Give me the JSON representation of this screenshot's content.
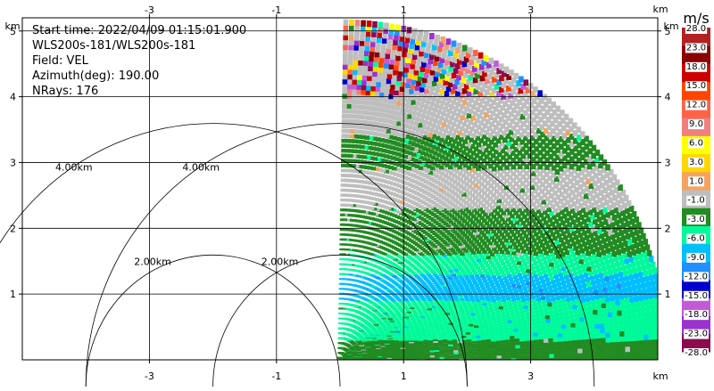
{
  "info": {
    "start_time": "Start time: 2022/04/09 01:15:01.900",
    "instrument": "WLS200s-181/WLS200s-181",
    "field": "Field: VEL",
    "azimuth": "Azimuth(deg): 190.00",
    "nrays": "NRays: 176"
  },
  "chart_data": {
    "type": "heatmap",
    "plot": "radar range-height (RHI) sector, velocity field",
    "x_range_km": [
      -5.0,
      5.0
    ],
    "y_range_km": [
      0.0,
      5.2
    ],
    "x_ticks": [
      -3,
      -1,
      1,
      3
    ],
    "x_tick_labels": [
      "-3",
      "-1",
      "1",
      "3"
    ],
    "y_ticks": [
      1,
      2,
      3,
      4,
      5
    ],
    "y_tick_labels": [
      "1",
      "2",
      "3",
      "4",
      "5"
    ],
    "axis_unit": "km",
    "grid": true,
    "max_range_km": 5.2,
    "elevation_range_deg": [
      0,
      90
    ],
    "range_rings_km": [
      2.0,
      4.0
    ],
    "range_ring_labels": [
      "2.00km",
      "4.00km"
    ],
    "colorbar": {
      "unit": "m/s",
      "bounds": [
        -28.0,
        -23.0,
        -18.0,
        -15.0,
        -12.0,
        -9.0,
        -6.0,
        -3.0,
        -1.0,
        1.0,
        3.0,
        6.0,
        9.0,
        12.0,
        15.0,
        18.0,
        23.0,
        28.0
      ],
      "labels": [
        "28.0",
        "23.0",
        "18.0",
        "15.0",
        "12.0",
        "9.0",
        "6.0",
        "3.0",
        "1.0",
        "-1.0",
        "-3.0",
        "-6.0",
        "-9.0",
        "-12.0",
        "-15.0",
        "-18.0",
        "-23.0",
        "-28.0"
      ],
      "colors_bottom_to_top": [
        "#8b0a50",
        "#9a32cd",
        "#c35bd9",
        "#0000cd",
        "#1e90ff",
        "#00bfff",
        "#00fa9a",
        "#228b22",
        "#bebebe",
        "#f4a460",
        "#ffd700",
        "#ffff00",
        "#f08080",
        "#ff6347",
        "#ff4500",
        "#cd0000",
        "#8b0000",
        "#b22222"
      ]
    },
    "layers": [
      {
        "description": "green band near ground",
        "r_km": [
          0.0,
          0.3
        ],
        "velocity_ms": -2.0
      },
      {
        "description": "light-green band",
        "r_km": [
          0.3,
          0.9
        ],
        "velocity_ms": -4.5
      },
      {
        "description": "cyan jet core",
        "r_km": [
          0.9,
          1.3
        ],
        "velocity_ms": -7.5
      },
      {
        "description": "light-green band",
        "r_km": [
          1.3,
          1.6
        ],
        "velocity_ms": -4.5
      },
      {
        "description": "green shear layer",
        "r_km": [
          1.6,
          2.3
        ],
        "velocity_ms": -2.0
      },
      {
        "description": "near-zero grey layer",
        "r_km": [
          2.3,
          2.9
        ],
        "velocity_ms": 0.0
      },
      {
        "description": "green patches",
        "r_km": [
          2.9,
          3.4
        ],
        "velocity_ms": -2.0
      },
      {
        "description": "near-zero grey layer",
        "r_km": [
          3.4,
          4.0
        ],
        "velocity_ms": 0.0
      },
      {
        "description": "noisy speckle (folded / low SNR)",
        "r_km": [
          4.0,
          5.2
        ],
        "velocity_ms": "random"
      }
    ]
  }
}
